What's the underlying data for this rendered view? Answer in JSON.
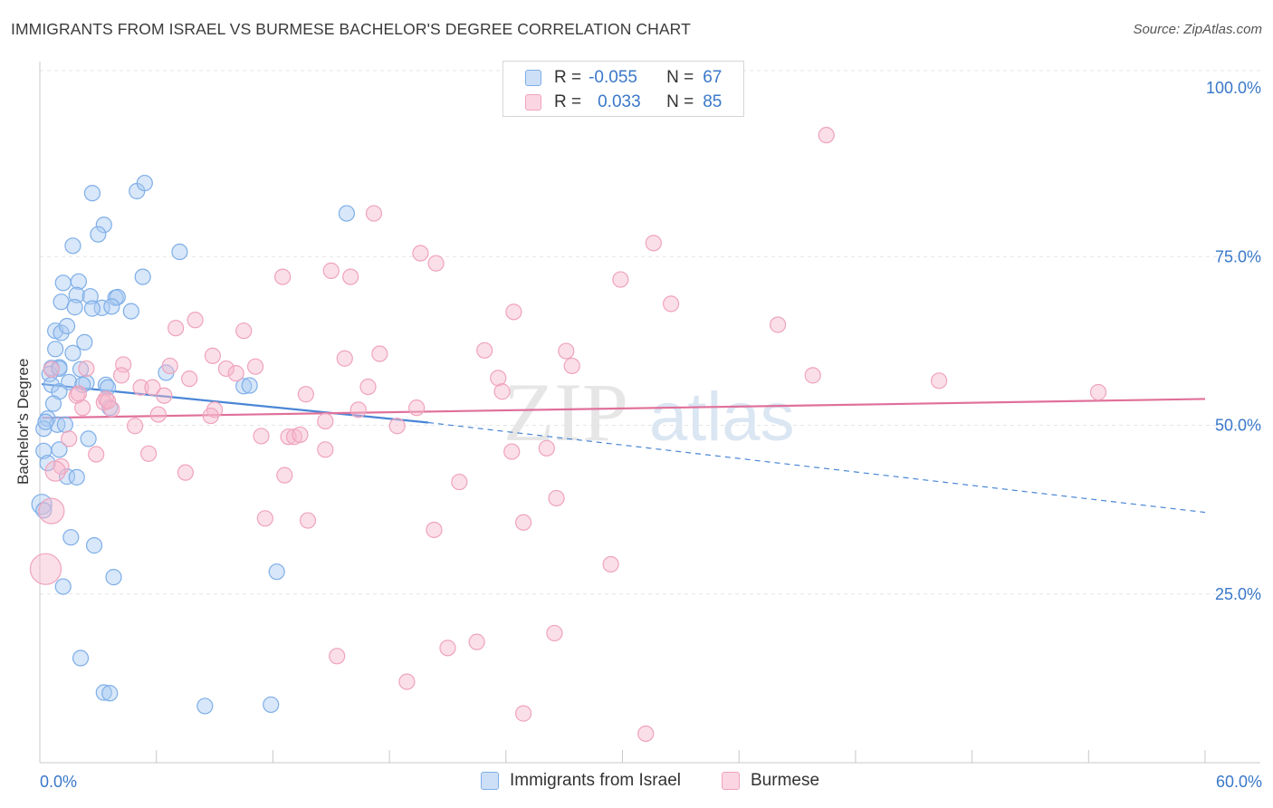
{
  "header": {
    "title": "IMMIGRANTS FROM ISRAEL VS BURMESE BACHELOR'S DEGREE CORRELATION CHART",
    "source": "Source: ZipAtlas.com"
  },
  "watermark": {
    "zip": "ZIP",
    "atlas": "atlas"
  },
  "legend_top": {
    "rows": [
      {
        "r_label": "R =",
        "r_value": "-0.055",
        "n_label": "N =",
        "n_value": "67",
        "color": "#a9c9f2"
      },
      {
        "r_label": "R =",
        "r_value": "0.033",
        "n_label": "N =",
        "n_value": "85",
        "color": "#f6b8cc"
      }
    ]
  },
  "bottom_legend": {
    "israel": "Immigrants from Israel",
    "burmese": "Burmese"
  },
  "chart_data": {
    "type": "scatter",
    "title": "IMMIGRANTS FROM ISRAEL VS BURMESE BACHELOR'S DEGREE CORRELATION CHART",
    "xlabel": "",
    "ylabel": "Bachelor's Degree",
    "xlim": [
      0,
      60
    ],
    "ylim": [
      0,
      100
    ],
    "x_tick_labels": {
      "min": "0.0%",
      "max": "60.0%"
    },
    "y_ticks": [
      {
        "value": 100,
        "label": "100.0%"
      },
      {
        "value": 75,
        "label": "75.0%"
      },
      {
        "value": 50,
        "label": "50.0%"
      },
      {
        "value": 25,
        "label": "25.0%"
      }
    ],
    "grid": true,
    "series": [
      {
        "name": "Immigrants from Israel",
        "color": "#4a86d6",
        "fill": "rgba(168,201,242,0.45)",
        "stroke": "#7eaee8",
        "trend": {
          "x0": 0.1,
          "y0": 56.1,
          "x1": 20,
          "y1": 50.4,
          "dash_to_x": 60,
          "dash_to_y": 37.1
        },
        "points": [
          [
            2.7,
            84.4
          ],
          [
            5.0,
            84.7
          ],
          [
            5.4,
            85.9
          ],
          [
            15.8,
            81.4
          ],
          [
            3.3,
            79.7
          ],
          [
            3.0,
            78.3
          ],
          [
            1.7,
            76.6
          ],
          [
            7.2,
            75.7
          ],
          [
            2.0,
            71.3
          ],
          [
            5.3,
            72.0
          ],
          [
            1.2,
            71.1
          ],
          [
            1.9,
            69.3
          ],
          [
            2.6,
            69.1
          ],
          [
            3.9,
            68.9
          ],
          [
            4.0,
            69.0
          ],
          [
            1.1,
            68.3
          ],
          [
            1.8,
            67.5
          ],
          [
            3.2,
            67.4
          ],
          [
            3.7,
            67.6
          ],
          [
            2.7,
            67.3
          ],
          [
            4.7,
            66.9
          ],
          [
            0.8,
            64.0
          ],
          [
            1.1,
            63.7
          ],
          [
            1.4,
            64.7
          ],
          [
            2.3,
            62.3
          ],
          [
            0.8,
            61.3
          ],
          [
            1.7,
            60.7
          ],
          [
            1.0,
            58.6
          ],
          [
            0.6,
            58.5
          ],
          [
            2.1,
            58.3
          ],
          [
            0.5,
            57.6
          ],
          [
            6.5,
            57.8
          ],
          [
            2.4,
            56.3
          ],
          [
            0.6,
            56.0
          ],
          [
            3.4,
            56.0
          ],
          [
            1.5,
            56.4
          ],
          [
            10.5,
            55.8
          ],
          [
            3.5,
            55.6
          ],
          [
            1.0,
            55.0
          ],
          [
            0.7,
            53.2
          ],
          [
            3.6,
            52.6
          ],
          [
            0.4,
            51.0
          ],
          [
            0.9,
            50.1
          ],
          [
            1.3,
            50.1
          ],
          [
            0.2,
            49.5
          ],
          [
            2.5,
            48.0
          ],
          [
            1.0,
            46.4
          ],
          [
            0.2,
            46.2
          ],
          [
            0.4,
            44.4
          ],
          [
            1.4,
            42.4
          ],
          [
            1.9,
            42.3
          ],
          [
            0.1,
            38.3
          ],
          [
            1.6,
            33.4
          ],
          [
            2.8,
            32.2
          ],
          [
            3.8,
            27.5
          ],
          [
            12.2,
            28.3
          ],
          [
            1.2,
            26.1
          ],
          [
            2.1,
            15.5
          ],
          [
            3.3,
            10.4
          ],
          [
            3.6,
            10.3
          ],
          [
            8.5,
            8.4
          ],
          [
            11.9,
            8.6
          ],
          [
            10.8,
            55.9
          ],
          [
            0.2,
            37.4
          ],
          [
            2.2,
            56.0
          ],
          [
            0.3,
            50.5
          ],
          [
            1.0,
            58.4
          ]
        ]
      },
      {
        "name": "Burmese",
        "color": "#e0709a",
        "fill": "rgba(246,184,204,0.45)",
        "stroke": "#efa3bd",
        "trend": {
          "x0": 0.1,
          "y0": 51.1,
          "x1": 60,
          "y1": 53.9
        },
        "points": [
          [
            40.5,
            93.0
          ],
          [
            17.2,
            81.4
          ],
          [
            31.6,
            77.0
          ],
          [
            19.6,
            75.5
          ],
          [
            20.4,
            74.0
          ],
          [
            15.0,
            72.9
          ],
          [
            12.5,
            72.0
          ],
          [
            16.0,
            72.0
          ],
          [
            29.9,
            71.6
          ],
          [
            32.5,
            68.0
          ],
          [
            24.4,
            66.8
          ],
          [
            8.0,
            65.6
          ],
          [
            38.0,
            64.9
          ],
          [
            7.0,
            64.4
          ],
          [
            10.5,
            64.0
          ],
          [
            22.9,
            61.1
          ],
          [
            27.1,
            61.0
          ],
          [
            17.5,
            60.6
          ],
          [
            15.7,
            59.9
          ],
          [
            8.9,
            60.3
          ],
          [
            4.3,
            59.0
          ],
          [
            6.7,
            58.8
          ],
          [
            2.4,
            58.4
          ],
          [
            9.6,
            58.4
          ],
          [
            11.1,
            58.7
          ],
          [
            27.4,
            58.8
          ],
          [
            10.1,
            57.7
          ],
          [
            4.2,
            57.4
          ],
          [
            23.6,
            57.0
          ],
          [
            7.7,
            56.9
          ],
          [
            39.8,
            57.4
          ],
          [
            46.3,
            56.6
          ],
          [
            16.9,
            55.7
          ],
          [
            5.2,
            55.6
          ],
          [
            5.8,
            55.6
          ],
          [
            23.8,
            55.0
          ],
          [
            1.9,
            54.4
          ],
          [
            2.0,
            54.7
          ],
          [
            6.4,
            54.4
          ],
          [
            13.7,
            54.6
          ],
          [
            3.4,
            53.9
          ],
          [
            3.3,
            53.4
          ],
          [
            2.2,
            52.6
          ],
          [
            3.7,
            52.4
          ],
          [
            9.0,
            52.3
          ],
          [
            16.4,
            52.3
          ],
          [
            6.1,
            51.6
          ],
          [
            8.8,
            51.4
          ],
          [
            14.7,
            50.6
          ],
          [
            4.9,
            49.9
          ],
          [
            18.4,
            49.9
          ],
          [
            11.4,
            48.4
          ],
          [
            12.8,
            48.3
          ],
          [
            13.1,
            48.3
          ],
          [
            1.5,
            48.0
          ],
          [
            13.4,
            48.6
          ],
          [
            14.7,
            46.4
          ],
          [
            24.3,
            46.1
          ],
          [
            26.1,
            46.6
          ],
          [
            2.9,
            45.7
          ],
          [
            5.6,
            45.8
          ],
          [
            1.1,
            43.9
          ],
          [
            0.8,
            43.2
          ],
          [
            7.5,
            43.0
          ],
          [
            12.6,
            42.6
          ],
          [
            21.6,
            41.6
          ],
          [
            26.6,
            39.2
          ],
          [
            0.6,
            37.3
          ],
          [
            11.6,
            36.2
          ],
          [
            13.8,
            35.9
          ],
          [
            24.9,
            35.6
          ],
          [
            20.3,
            34.5
          ],
          [
            29.4,
            29.4
          ],
          [
            0.3,
            28.7
          ],
          [
            26.5,
            19.2
          ],
          [
            22.5,
            17.9
          ],
          [
            21.0,
            17.0
          ],
          [
            15.3,
            15.8
          ],
          [
            18.9,
            12.0
          ],
          [
            24.9,
            7.3
          ],
          [
            31.2,
            4.3
          ],
          [
            0.6,
            58.3
          ],
          [
            19.4,
            52.6
          ],
          [
            3.5,
            53.6
          ],
          [
            54.5,
            54.9
          ]
        ]
      }
    ]
  }
}
